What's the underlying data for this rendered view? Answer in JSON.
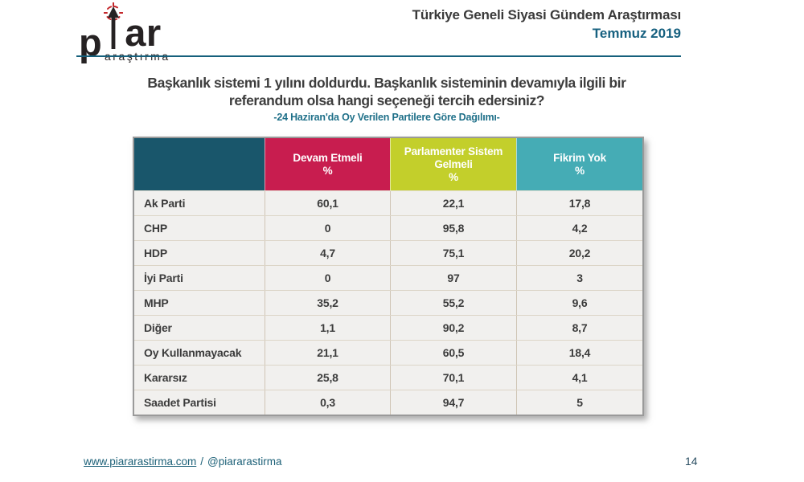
{
  "slide": {
    "logo": {
      "word_start": "p",
      "word_end": "ar",
      "tagline": "araştırma",
      "mark": "arrow-target-icon",
      "mark_color": "#c4272b",
      "text_color": "#262223"
    },
    "header": {
      "title": "Türkiye Geneli Siyasi Gündem Araştırması",
      "period": "Temmuz 2019"
    },
    "question": {
      "line1": "Başkanlık sistemi 1 yılını doldurdu. Başkanlık sisteminin devamıyla ilgili bir",
      "line2": "referandum olsa hangi seçeneği tercih edersiniz?",
      "note": "-24 Haziran'da Oy Verilen Partilere Göre Dağılımı-"
    },
    "footer": {
      "website": "www.piararastirma.com",
      "separator": "/",
      "handle": "@piararastirma",
      "page_number": "14"
    }
  },
  "chart_data": {
    "type": "table",
    "title": "Başkanlık sistemi 1 yılını doldurdu. Başkanlık sisteminin devamıyla ilgili bir referandum olsa hangi seçeneği tercih edersiniz?",
    "subtitle": "-24 Haziran'da Oy Verilen Partilere Göre Dağılımı-",
    "decimal_separator": ",",
    "row_header_color": "#19566b",
    "columns": [
      {
        "label": "Devam Etmeli",
        "unit": "%",
        "color": "#c81d4f"
      },
      {
        "label": "Parlamenter Sistem Gelmeli",
        "unit": "%",
        "color": "#c3cf2b"
      },
      {
        "label": "Fikrim Yok",
        "unit": "%",
        "color": "#45acb5"
      }
    ],
    "rows": [
      {
        "party": "Ak Parti",
        "values": [
          "60,1",
          "22,1",
          "17,8"
        ]
      },
      {
        "party": "CHP",
        "values": [
          "0",
          "95,8",
          "4,2"
        ]
      },
      {
        "party": "HDP",
        "values": [
          "4,7",
          "75,1",
          "20,2"
        ]
      },
      {
        "party": "İyi Parti",
        "values": [
          "0",
          "97",
          "3"
        ]
      },
      {
        "party": "MHP",
        "values": [
          "35,2",
          "55,2",
          "9,6"
        ]
      },
      {
        "party": "Diğer",
        "values": [
          "1,1",
          "90,2",
          "8,7"
        ]
      },
      {
        "party": "Oy Kullanmayacak",
        "values": [
          "21,1",
          "60,5",
          "18,4"
        ]
      },
      {
        "party": "Kararsız",
        "values": [
          "25,8",
          "70,1",
          "4,1"
        ]
      },
      {
        "party": "Saadet Partisi",
        "values": [
          "0,3",
          "94,7",
          "5"
        ]
      }
    ]
  },
  "colors": {
    "accent_teal_text": "#176180",
    "rule_teal": "#15607c",
    "note_teal": "#1f7089",
    "body_text": "#3c3c3c",
    "table_border_gray": "#9a9a9a",
    "row_bg": "#f1f0ee",
    "cell_line_tan": "#cfc5b5"
  }
}
